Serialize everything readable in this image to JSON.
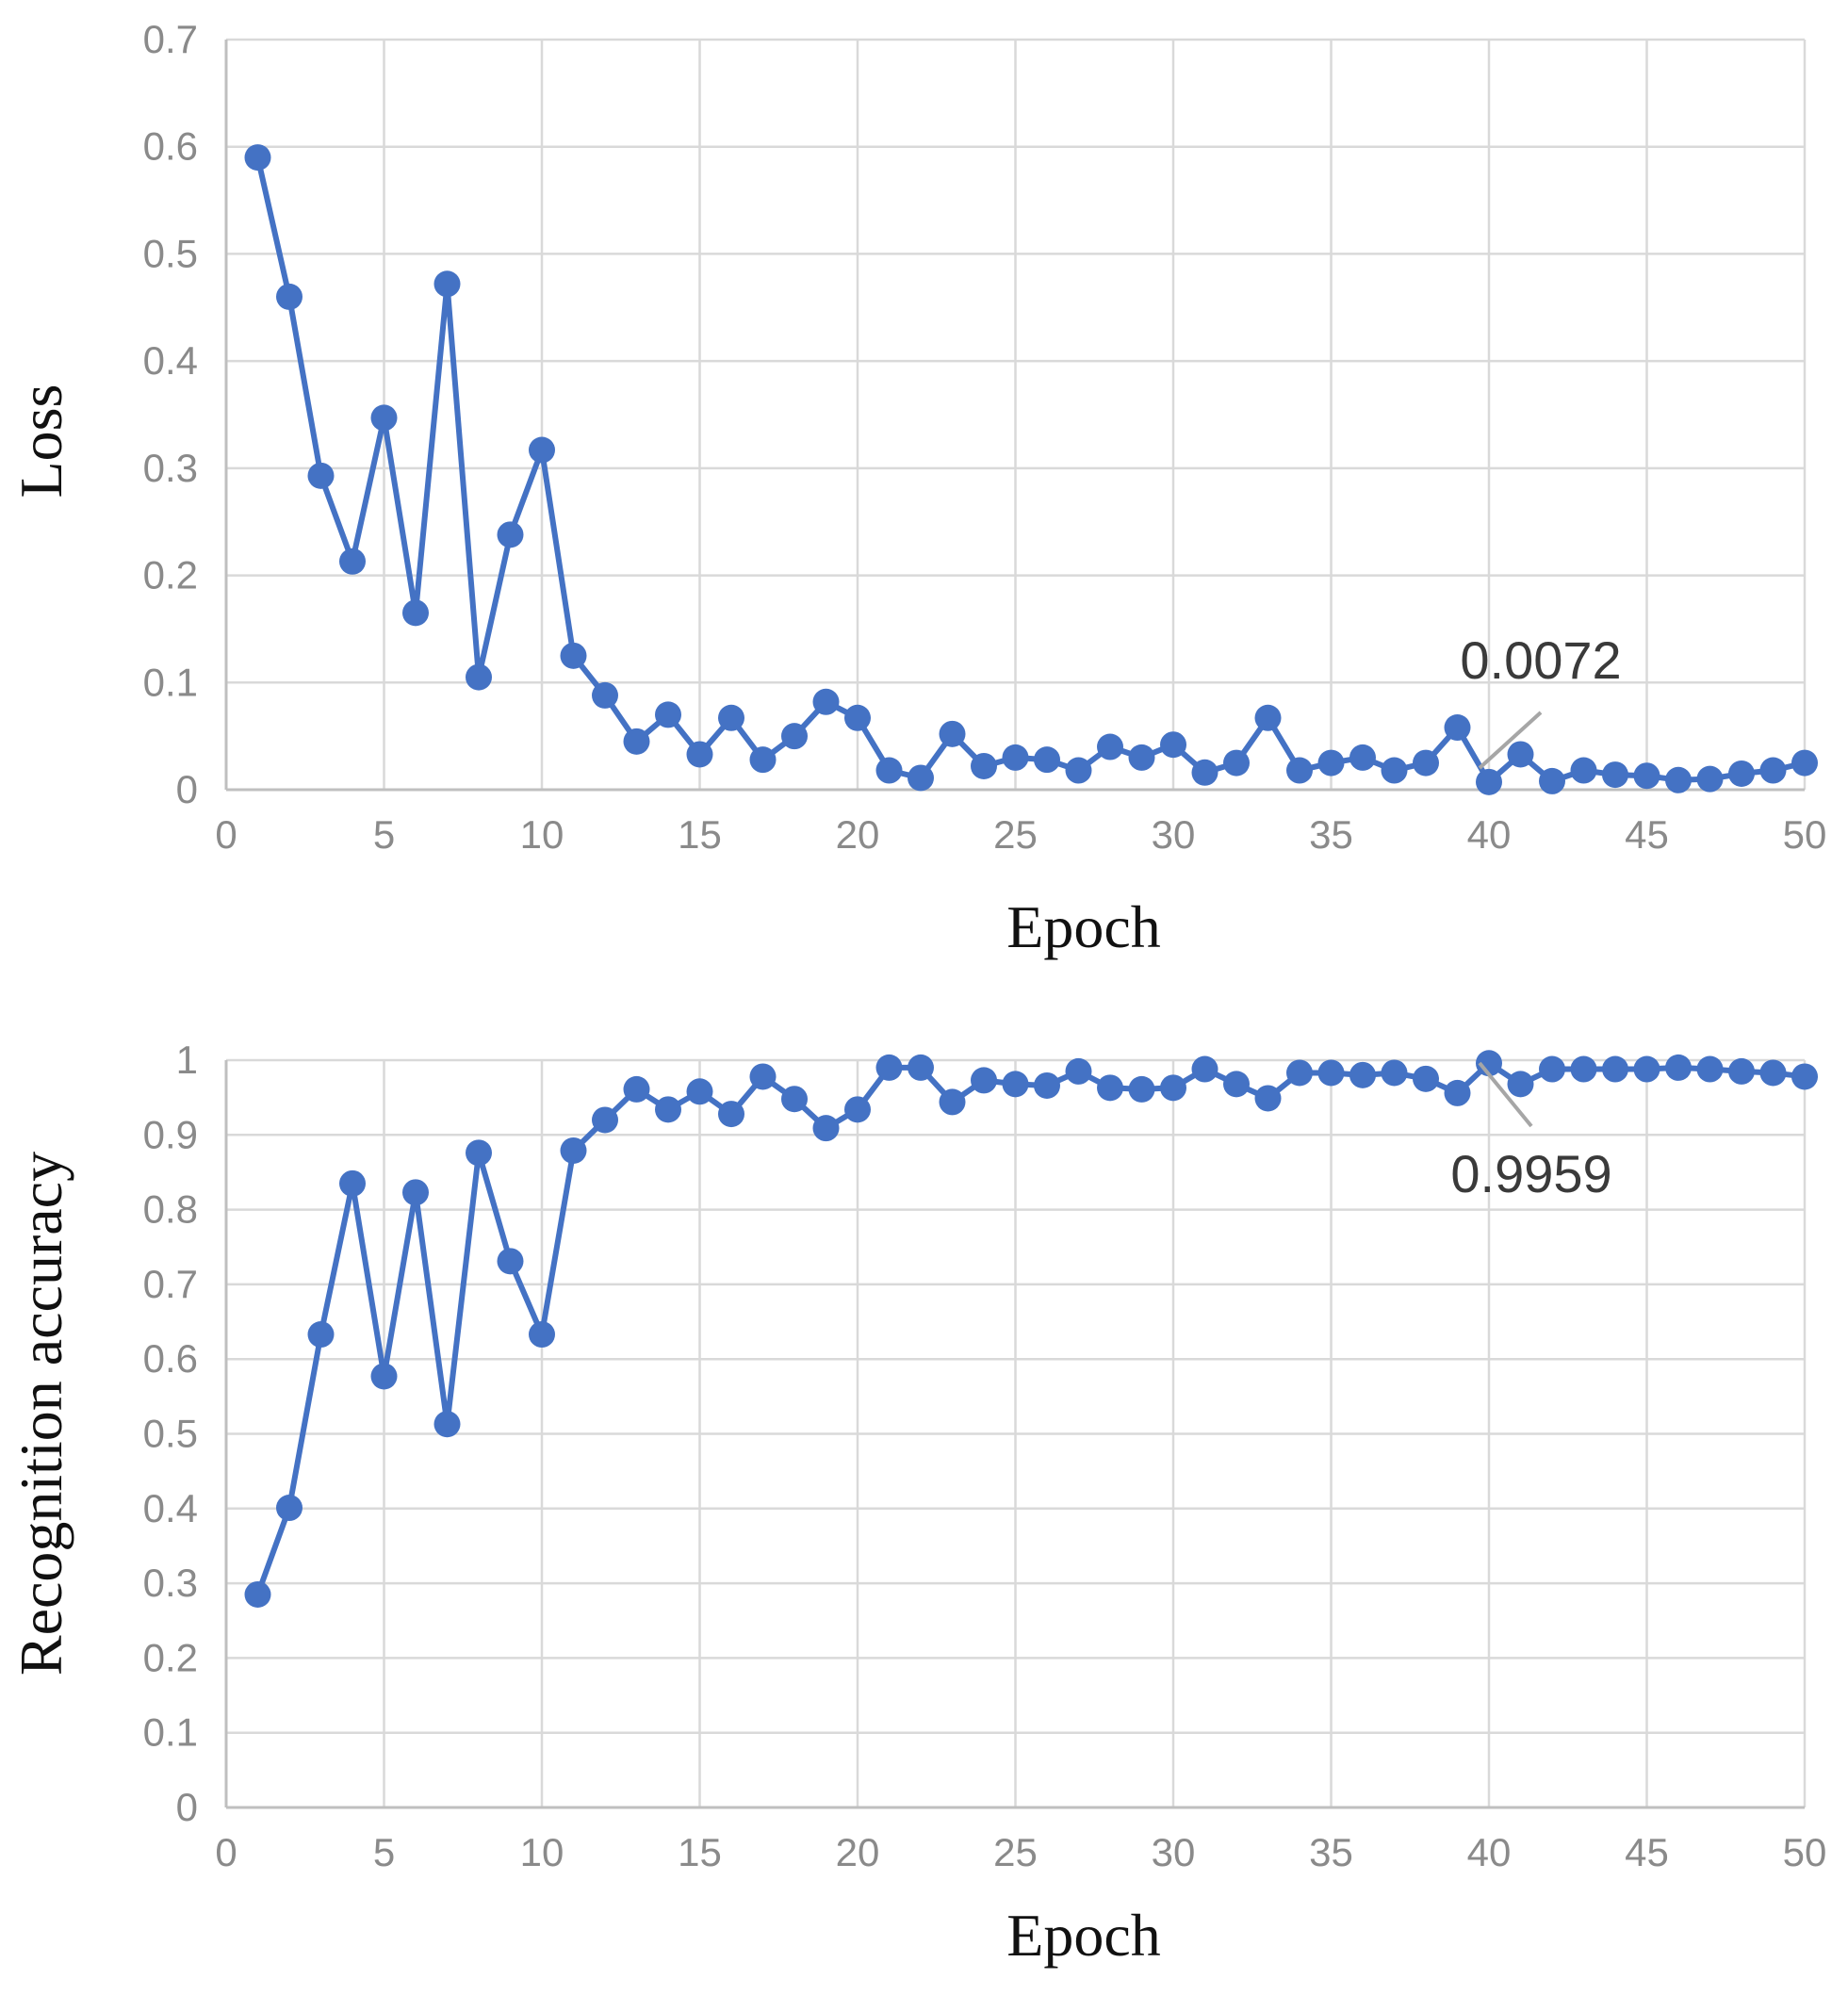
{
  "chart_data": [
    {
      "type": "line",
      "title": "",
      "xlabel": "Epoch",
      "ylabel": "Loss",
      "xlim": [
        0,
        50
      ],
      "ylim": [
        0,
        0.7
      ],
      "x_ticks": [
        "0",
        "5",
        "10",
        "15",
        "20",
        "25",
        "30",
        "35",
        "40",
        "45",
        "50"
      ],
      "y_ticks": [
        "0",
        "0.1",
        "0.2",
        "0.3",
        "0.4",
        "0.5",
        "0.6",
        "0.7"
      ],
      "grid": true,
      "series": [
        {
          "name": "Loss",
          "color": "#4472C4",
          "x": [
            1,
            2,
            3,
            4,
            5,
            6,
            7,
            8,
            9,
            10,
            11,
            12,
            13,
            14,
            15,
            16,
            17,
            18,
            19,
            20,
            21,
            22,
            23,
            24,
            25,
            26,
            27,
            28,
            29,
            30,
            31,
            32,
            33,
            34,
            35,
            36,
            37,
            38,
            39,
            40,
            41,
            42,
            43,
            44,
            45,
            46,
            47,
            48,
            49,
            50
          ],
          "values": [
            0.59,
            0.46,
            0.293,
            0.213,
            0.347,
            0.165,
            0.472,
            0.105,
            0.238,
            0.317,
            0.125,
            0.088,
            0.045,
            0.07,
            0.033,
            0.067,
            0.028,
            0.05,
            0.082,
            0.067,
            0.018,
            0.011,
            0.052,
            0.022,
            0.03,
            0.028,
            0.018,
            0.04,
            0.03,
            0.042,
            0.016,
            0.025,
            0.067,
            0.018,
            0.025,
            0.03,
            0.018,
            0.025,
            0.058,
            0.0072,
            0.033,
            0.008,
            0.018,
            0.014,
            0.013,
            0.009,
            0.01,
            0.015,
            0.018,
            0.025
          ]
        }
      ],
      "annotations": [
        {
          "x": 40,
          "y": 0.0072,
          "text": "0.0072"
        }
      ]
    },
    {
      "type": "line",
      "title": "",
      "xlabel": "Epoch",
      "ylabel": "Recognition accuracy",
      "xlim": [
        0,
        50
      ],
      "ylim": [
        0,
        1
      ],
      "x_ticks": [
        "0",
        "5",
        "10",
        "15",
        "20",
        "25",
        "30",
        "35",
        "40",
        "45",
        "50"
      ],
      "y_ticks": [
        "0",
        "0.1",
        "0.2",
        "0.3",
        "0.4",
        "0.5",
        "0.6",
        "0.7",
        "0.8",
        "0.9",
        "1"
      ],
      "grid": true,
      "series": [
        {
          "name": "Recognition accuracy",
          "color": "#4472C4",
          "x": [
            1,
            2,
            3,
            4,
            5,
            6,
            7,
            8,
            9,
            10,
            11,
            12,
            13,
            14,
            15,
            16,
            17,
            18,
            19,
            20,
            21,
            22,
            23,
            24,
            25,
            26,
            27,
            28,
            29,
            30,
            31,
            32,
            33,
            34,
            35,
            36,
            37,
            38,
            39,
            40,
            41,
            42,
            43,
            44,
            45,
            46,
            47,
            48,
            49,
            50
          ],
          "values": [
            0.285,
            0.401,
            0.633,
            0.835,
            0.577,
            0.823,
            0.513,
            0.876,
            0.731,
            0.633,
            0.879,
            0.92,
            0.961,
            0.934,
            0.958,
            0.928,
            0.978,
            0.948,
            0.909,
            0.934,
            0.99,
            0.99,
            0.944,
            0.973,
            0.968,
            0.966,
            0.985,
            0.963,
            0.961,
            0.963,
            0.988,
            0.968,
            0.949,
            0.983,
            0.983,
            0.98,
            0.983,
            0.975,
            0.956,
            0.9959,
            0.968,
            0.988,
            0.988,
            0.988,
            0.988,
            0.99,
            0.988,
            0.985,
            0.983,
            0.978
          ]
        }
      ],
      "annotations": [
        {
          "x": 40,
          "y": 0.9959,
          "text": "0.9959"
        }
      ]
    }
  ]
}
